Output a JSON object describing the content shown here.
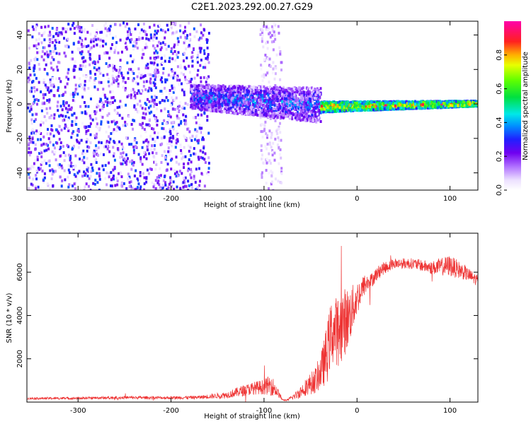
{
  "title": "C2E1.2023.292.00.27.G29",
  "chart_data": [
    {
      "type": "heatmap",
      "xlabel": "Height of straight line (km)",
      "ylabel": "Frequency (Hz)",
      "xlim": [
        -355,
        130
      ],
      "ylim": [
        -50,
        48
      ],
      "xticks": [
        -300,
        -200,
        -100,
        0,
        100
      ],
      "yticks": [
        -40,
        -20,
        0,
        20,
        40
      ],
      "colorbar": {
        "label": "Normalized spectral amplitude",
        "range": [
          0.0,
          1.0
        ],
        "ticks": [
          0.0,
          0.2,
          0.4,
          0.6,
          0.8
        ],
        "colormap": "rainbow (white-violet-blue-cyan-green-yellow-red-magenta)"
      },
      "features": [
        {
          "description": "noise",
          "x_range": [
            -355,
            -160
          ],
          "freq_range": [
            -50,
            48
          ],
          "amplitude_range": [
            0.02,
            0.35
          ]
        },
        {
          "description": "noise",
          "x_range": [
            -105,
            -82
          ],
          "freq_range": [
            -50,
            48
          ],
          "amplitude_range": [
            0.02,
            0.15
          ]
        },
        {
          "description": "signal",
          "x_range": [
            -180,
            -40
          ],
          "center_freq": [
            5,
            0
          ],
          "bandwidth_hz": [
            7,
            10
          ],
          "amplitude_range": [
            0.1,
            0.45
          ]
        },
        {
          "description": "signal",
          "x_range": [
            -40,
            130
          ],
          "center_freq": [
            -1,
            1
          ],
          "bandwidth_hz": [
            3,
            1.5
          ],
          "amplitude_range": [
            0.5,
            1.0
          ]
        }
      ],
      "grid": false
    },
    {
      "type": "line",
      "xlabel": "Height of straight line (km)",
      "ylabel": "SNR (10 * v/v)",
      "xlim": [
        -355,
        130
      ],
      "ylim": [
        0,
        7800
      ],
      "xticks": [
        -300,
        -200,
        -100,
        0,
        100
      ],
      "yticks": [
        2000,
        4000,
        6000
      ],
      "color": "#ee3333",
      "series": [
        {
          "x": [
            -355,
            -300,
            -250,
            -200,
            -170,
            -140,
            -125,
            -110,
            -100,
            -92,
            -85,
            -80,
            -75,
            -65,
            -55,
            -45,
            -38,
            -32,
            -28,
            -22,
            -15,
            -8,
            0,
            8,
            15,
            25,
            40,
            60,
            80,
            100,
            115,
            130
          ],
          "values": [
            170,
            180,
            210,
            200,
            220,
            330,
            500,
            650,
            700,
            800,
            420,
            100,
            90,
            330,
            700,
            1000,
            1500,
            2300,
            3200,
            3300,
            3600,
            4000,
            4800,
            5400,
            5600,
            6100,
            6400,
            6400,
            6200,
            6300,
            6000,
            5600
          ],
          "noise": [
            50,
            60,
            70,
            70,
            80,
            150,
            250,
            300,
            350,
            500,
            200,
            40,
            40,
            200,
            400,
            600,
            900,
            1400,
            1500,
            1600,
            1700,
            1300,
            800,
            500,
            350,
            300,
            250,
            250,
            300,
            500,
            350,
            250
          ]
        }
      ],
      "grid": false
    }
  ]
}
